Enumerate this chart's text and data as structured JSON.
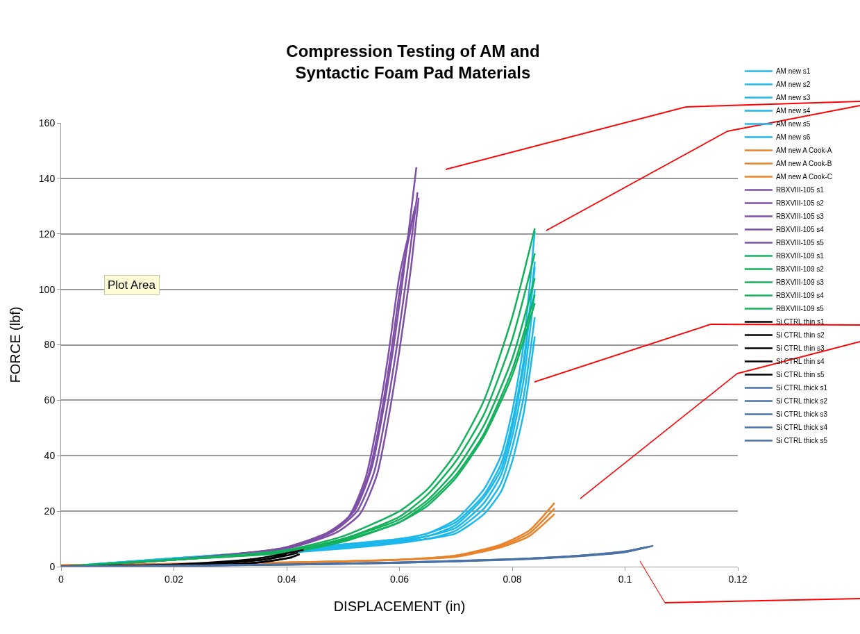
{
  "chart_data": {
    "type": "line",
    "title": "Compression Testing of AM and\nSyntactic Foam Pad Materials",
    "xlabel": "DISPLACEMENT (in)",
    "ylabel": "FORCE (lbf)",
    "xlim": [
      0,
      0.12
    ],
    "xticks": [
      0,
      0.02,
      0.04,
      0.06,
      0.08,
      0.1,
      0.12
    ],
    "ylim": [
      0,
      160
    ],
    "yticks": [
      0,
      20,
      40,
      60,
      80,
      100,
      120,
      140,
      160
    ],
    "grid": "y",
    "legend": "right",
    "marker": "none",
    "line_style": "solid",
    "annotations": [
      "Plot Area"
    ],
    "series": [
      {
        "name": "AM new s1",
        "color": "#1cb8ec",
        "x": [
          0,
          0.02,
          0.04,
          0.05,
          0.06,
          0.065,
          0.07,
          0.075,
          0.078,
          0.08,
          0.082,
          0.084
        ],
        "values": [
          0,
          3,
          6,
          8,
          10,
          12,
          17,
          28,
          40,
          56,
          80,
          121
        ]
      },
      {
        "name": "AM new s2",
        "color": "#1cb8ec",
        "x": [
          0,
          0.02,
          0.04,
          0.05,
          0.06,
          0.065,
          0.07,
          0.075,
          0.078,
          0.08,
          0.082,
          0.084
        ],
        "values": [
          0,
          3,
          6,
          8,
          10,
          12,
          16,
          26,
          37,
          52,
          74,
          110
        ]
      },
      {
        "name": "AM new s3",
        "color": "#1cb8ec",
        "x": [
          0,
          0.02,
          0.04,
          0.05,
          0.06,
          0.065,
          0.07,
          0.075,
          0.078,
          0.08,
          0.082,
          0.084
        ],
        "values": [
          0,
          3,
          5.5,
          7.5,
          9.5,
          11,
          15,
          25,
          35,
          50,
          72,
          108
        ]
      },
      {
        "name": "AM new s4",
        "color": "#1cb8ec",
        "x": [
          0,
          0.02,
          0.04,
          0.05,
          0.06,
          0.065,
          0.07,
          0.075,
          0.078,
          0.08,
          0.082,
          0.084
        ],
        "values": [
          0,
          3,
          5.5,
          7,
          9,
          11,
          14,
          23,
          33,
          47,
          67,
          100
        ]
      },
      {
        "name": "AM new s5",
        "color": "#1cb8ec",
        "x": [
          0,
          0.02,
          0.04,
          0.05,
          0.06,
          0.065,
          0.07,
          0.075,
          0.078,
          0.08,
          0.082,
          0.084
        ],
        "values": [
          0,
          2.5,
          5,
          7,
          9,
          10,
          13,
          21,
          30,
          43,
          61,
          90
        ]
      },
      {
        "name": "AM new s6",
        "color": "#1cb8ec",
        "x": [
          0,
          0.02,
          0.04,
          0.05,
          0.06,
          0.065,
          0.07,
          0.075,
          0.078,
          0.08,
          0.082,
          0.084
        ],
        "values": [
          0,
          2.5,
          5,
          6.5,
          8.5,
          10,
          12,
          19,
          27,
          38,
          55,
          83
        ]
      },
      {
        "name": "AM new A Cook-A",
        "color": "#e8832a",
        "x": [
          0,
          0.02,
          0.04,
          0.06,
          0.07,
          0.078,
          0.083,
          0.0875
        ],
        "values": [
          0.5,
          1,
          1.5,
          2.5,
          4,
          8,
          13,
          23
        ]
      },
      {
        "name": "AM new A Cook-B",
        "color": "#e8832a",
        "x": [
          0,
          0.02,
          0.04,
          0.06,
          0.07,
          0.078,
          0.083,
          0.0875
        ],
        "values": [
          0.5,
          1,
          1.5,
          2.5,
          4,
          7.5,
          12,
          21
        ]
      },
      {
        "name": "AM new A Cook-C",
        "color": "#e8832a",
        "x": [
          0,
          0.02,
          0.04,
          0.06,
          0.07,
          0.078,
          0.083,
          0.0875
        ],
        "values": [
          0.5,
          1,
          1.5,
          2.5,
          3.5,
          7,
          11,
          19
        ]
      },
      {
        "name": "RBXVIII-105 s1",
        "color": "#7e4fa6",
        "x": [
          0,
          0.02,
          0.04,
          0.048,
          0.052,
          0.055,
          0.057,
          0.059,
          0.061,
          0.063
        ],
        "values": [
          0,
          2.5,
          7,
          13,
          20,
          35,
          55,
          80,
          110,
          144
        ]
      },
      {
        "name": "RBXVIII-105 s2",
        "color": "#7e4fa6",
        "x": [
          0,
          0.02,
          0.0405,
          0.0485,
          0.0525,
          0.0555,
          0.0575,
          0.0595,
          0.0615,
          0.0632
        ],
        "values": [
          0,
          2.5,
          7,
          13,
          20,
          34,
          54,
          79,
          108,
          135
        ]
      },
      {
        "name": "RBXVIII-105 s3",
        "color": "#7e4fa6",
        "x": [
          0,
          0.02,
          0.041,
          0.049,
          0.053,
          0.056,
          0.058,
          0.06,
          0.062,
          0.0634
        ],
        "values": [
          0,
          2.5,
          7,
          12.5,
          19,
          33,
          53,
          78,
          107,
          133
        ]
      },
      {
        "name": "RBXVIII-105 s4",
        "color": "#7e4fa6",
        "x": [
          0,
          0.02,
          0.0395,
          0.0475,
          0.0515,
          0.0545,
          0.0565,
          0.0585,
          0.0605,
          0.0628
        ],
        "values": [
          0,
          2.5,
          6.5,
          12,
          19,
          33,
          52,
          77,
          106,
          130
        ]
      },
      {
        "name": "RBXVIII-105 s5",
        "color": "#7e4fa6",
        "x": [
          0,
          0.02,
          0.039,
          0.047,
          0.051,
          0.054,
          0.056,
          0.058,
          0.06,
          0.0626
        ],
        "values": [
          0,
          2.5,
          6.5,
          12,
          18,
          32,
          51,
          76,
          105,
          128
        ]
      },
      {
        "name": "RBXVIII-109 s1",
        "color": "#13b15c",
        "x": [
          0,
          0.02,
          0.04,
          0.05,
          0.06,
          0.065,
          0.07,
          0.075,
          0.08,
          0.084
        ],
        "values": [
          0,
          2.5,
          6,
          11,
          20,
          28,
          41,
          60,
          90,
          122
        ]
      },
      {
        "name": "RBXVIII-109 s2",
        "color": "#13b15c",
        "x": [
          0,
          0.02,
          0.04,
          0.05,
          0.06,
          0.065,
          0.07,
          0.075,
          0.08,
          0.084
        ],
        "values": [
          0,
          2.5,
          5.5,
          10,
          18,
          26,
          38,
          55,
          82,
          113
        ]
      },
      {
        "name": "RBXVIII-109 s3",
        "color": "#13b15c",
        "x": [
          0,
          0.02,
          0.04,
          0.05,
          0.06,
          0.065,
          0.07,
          0.075,
          0.08,
          0.084
        ],
        "values": [
          0,
          2.5,
          5.5,
          10,
          17,
          24,
          35,
          51,
          75,
          104
        ]
      },
      {
        "name": "RBXVIII-109 s4",
        "color": "#13b15c",
        "x": [
          0,
          0.02,
          0.04,
          0.05,
          0.06,
          0.065,
          0.07,
          0.075,
          0.08,
          0.084
        ],
        "values": [
          0,
          2.5,
          5.5,
          9.5,
          16,
          23,
          33,
          48,
          71,
          98
        ]
      },
      {
        "name": "RBXVIII-109 s5",
        "color": "#13b15c",
        "x": [
          0,
          0.02,
          0.04,
          0.05,
          0.06,
          0.065,
          0.07,
          0.075,
          0.08,
          0.084
        ],
        "values": [
          0,
          2.5,
          5,
          9,
          16,
          22,
          32,
          47,
          69,
          95
        ]
      },
      {
        "name": "Si CTRL thin s1",
        "color": "#000000",
        "x": [
          0,
          0.02,
          0.03,
          0.035,
          0.04,
          0.043
        ],
        "values": [
          0,
          0.8,
          2,
          3,
          4.8,
          6
        ]
      },
      {
        "name": "Si CTRL thin s2",
        "color": "#000000",
        "x": [
          0,
          0.02,
          0.03,
          0.036,
          0.04,
          0.042
        ],
        "values": [
          0,
          0.5,
          1.5,
          2.5,
          4,
          5
        ]
      },
      {
        "name": "Si CTRL thin s3",
        "color": "#000000",
        "x": [
          0,
          0.018,
          0.028,
          0.034,
          0.038,
          0.041
        ],
        "values": [
          0,
          0.2,
          0.6,
          1.3,
          2.3,
          3.3
        ]
      },
      {
        "name": "Si CTRL thin s4",
        "color": "#000000",
        "x": [
          0,
          0.022,
          0.032,
          0.037,
          0.041,
          0.0423
        ],
        "values": [
          0,
          0.5,
          1,
          2,
          3.5,
          4.5
        ]
      },
      {
        "name": "Si CTRL thin s5",
        "color": "#000000",
        "x": [
          0,
          0.016,
          0.026,
          0.033,
          0.037,
          0.04
        ],
        "values": [
          0,
          0.5,
          1,
          2,
          3,
          4.5
        ]
      },
      {
        "name": "Si CTRL thick s1",
        "color": "#4a72a6",
        "x": [
          0,
          0.02,
          0.04,
          0.06,
          0.08,
          0.09,
          0.1,
          0.105
        ],
        "values": [
          0,
          0.3,
          0.8,
          1.5,
          2.7,
          3.7,
          5.5,
          7.5
        ]
      },
      {
        "name": "Si CTRL thick s2",
        "color": "#4a72a6",
        "x": [
          0,
          0.02,
          0.04,
          0.06,
          0.08,
          0.09,
          0.1,
          0.1045
        ],
        "values": [
          0,
          0.3,
          0.8,
          1.5,
          2.7,
          3.7,
          5.5,
          7.3
        ]
      },
      {
        "name": "Si CTRL thick s3",
        "color": "#4a72a6",
        "x": [
          0,
          0.02,
          0.04,
          0.06,
          0.08,
          0.09,
          0.1,
          0.104
        ],
        "values": [
          0,
          0.3,
          0.8,
          1.5,
          2.6,
          3.6,
          5.3,
          7
        ]
      },
      {
        "name": "Si CTRL thick s4",
        "color": "#4a72a6",
        "x": [
          0,
          0.02,
          0.04,
          0.06,
          0.08,
          0.09,
          0.1,
          0.1035
        ],
        "values": [
          0,
          0.3,
          0.7,
          1.4,
          2.6,
          3.6,
          5.3,
          6.9
        ]
      },
      {
        "name": "Si CTRL thick s5",
        "color": "#4a72a6",
        "x": [
          0,
          0.02,
          0.04,
          0.06,
          0.08,
          0.09,
          0.1,
          0.103
        ],
        "values": [
          0,
          0.3,
          0.7,
          1.4,
          2.5,
          3.5,
          5.2,
          6.8
        ]
      }
    ]
  }
}
